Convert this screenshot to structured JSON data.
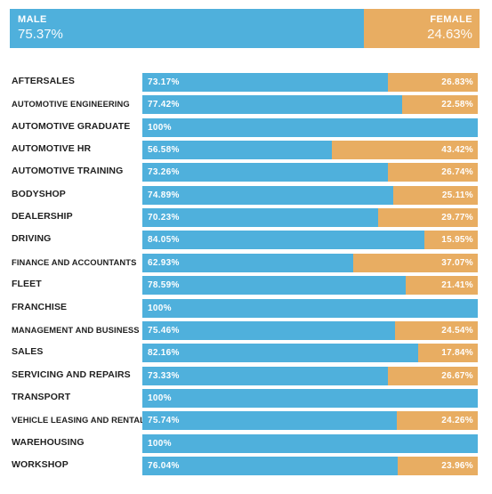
{
  "colors": {
    "male": "#4fb0dc",
    "female": "#e8ad62"
  },
  "summary": {
    "male_label": "MALE",
    "male_value": "75.37%",
    "female_label": "FEMALE",
    "female_value": "24.63%",
    "male_share": 75.37,
    "female_share": 24.63
  },
  "chart_data": {
    "type": "bar",
    "orientation": "horizontal",
    "stacked": true,
    "categories": [
      "AFTERSALES",
      "AUTOMOTIVE ENGINEERING",
      "AUTOMOTIVE GRADUATE",
      "AUTOMOTIVE HR",
      "AUTOMOTIVE TRAINING",
      "BODYSHOP",
      "DEALERSHIP",
      "DRIVING",
      "FINANCE AND ACCOUNTANTS",
      "FLEET",
      "FRANCHISE",
      "MANAGEMENT AND BUSINESS",
      "SALES",
      "SERVICING AND REPAIRS",
      "TRANSPORT",
      "VEHICLE LEASING AND RENTAL",
      "WAREHOUSING",
      "WORKSHOP"
    ],
    "series": [
      {
        "name": "MALE",
        "values": [
          73.17,
          77.42,
          100,
          56.58,
          73.26,
          74.89,
          70.23,
          84.05,
          62.93,
          78.59,
          100,
          75.46,
          82.16,
          73.33,
          100,
          75.74,
          100,
          76.04
        ],
        "labels": [
          "73.17%",
          "77.42%",
          "100%",
          "56.58%",
          "73.26%",
          "74.89%",
          "70.23%",
          "84.05%",
          "62.93%",
          "78.59%",
          "100%",
          "75.46%",
          "82.16%",
          "73.33%",
          "100%",
          "75.74%",
          "100%",
          "76.04%"
        ]
      },
      {
        "name": "FEMALE",
        "values": [
          26.83,
          22.58,
          0,
          43.42,
          26.74,
          25.11,
          29.77,
          15.95,
          37.07,
          21.41,
          0,
          24.54,
          17.84,
          26.67,
          0,
          24.26,
          0,
          23.96
        ],
        "labels": [
          "26.83%",
          "22.58%",
          "",
          "43.42%",
          "26.74%",
          "25.11%",
          "29.77%",
          "15.95%",
          "37.07%",
          "21.41%",
          "",
          "24.54%",
          "17.84%",
          "26.67%",
          "",
          "24.26%",
          "",
          "23.96%"
        ]
      }
    ],
    "xlim": [
      0,
      100
    ],
    "grid": false,
    "title": ""
  }
}
